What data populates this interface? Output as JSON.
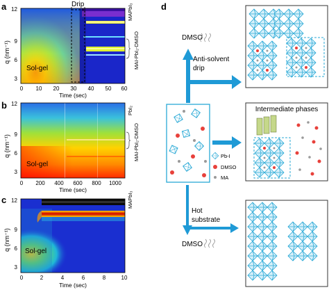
{
  "panels": {
    "a": {
      "letter": "a",
      "ylabel": "q (nm⁻¹)",
      "xlabel": "Time (sec)",
      "xticks": [
        "0",
        "10",
        "20",
        "30",
        "40",
        "50",
        "60"
      ],
      "yticks": [
        "3",
        "6",
        "9",
        "12"
      ],
      "drip_label": "Drip",
      "sol_gel": "Sol-gel",
      "phase_top": "MAPbI₃",
      "phase_mid": "MAI-PbI₂-DMSO"
    },
    "b": {
      "letter": "b",
      "ylabel": "q (nm⁻¹)",
      "xlabel": "Time (sec)",
      "xticks": [
        "0",
        "200",
        "400",
        "600",
        "800",
        "1000"
      ],
      "yticks": [
        "3",
        "6",
        "9",
        "12"
      ],
      "sol_gel": "Sol-gel",
      "phase_top": "PbI₂",
      "phase_mid": "MAI-PbI₂-DMSO"
    },
    "c": {
      "letter": "c",
      "ylabel": "q (nm⁻¹)",
      "xlabel": "Time (sec)",
      "xticks": [
        "0",
        "2",
        "4",
        "6",
        "8",
        "10"
      ],
      "yticks": [
        "3",
        "6",
        "9",
        "12"
      ],
      "sol_gel": "Sol-gel",
      "phase_top": "MAPbI₃"
    },
    "d": {
      "letter": "d",
      "dmso_top": "DMSO",
      "antisolvent": [
        "Anti-solvent",
        "drip"
      ],
      "intermediate": "Intermediate phases",
      "legend_pbi": "Pb-I",
      "legend_dmso": "DMSO",
      "legend_ma": "MA",
      "hot": [
        "Hot",
        "substrate"
      ],
      "dmso_bottom": "DMSO"
    }
  },
  "colors": {
    "octahedron": "#2aa9d6",
    "dmso_dot": "#e8413b",
    "ma_dot": "#9a9a9a",
    "arrow": "#1f9ad6",
    "heat_low": "#1a2fd0"
  }
}
